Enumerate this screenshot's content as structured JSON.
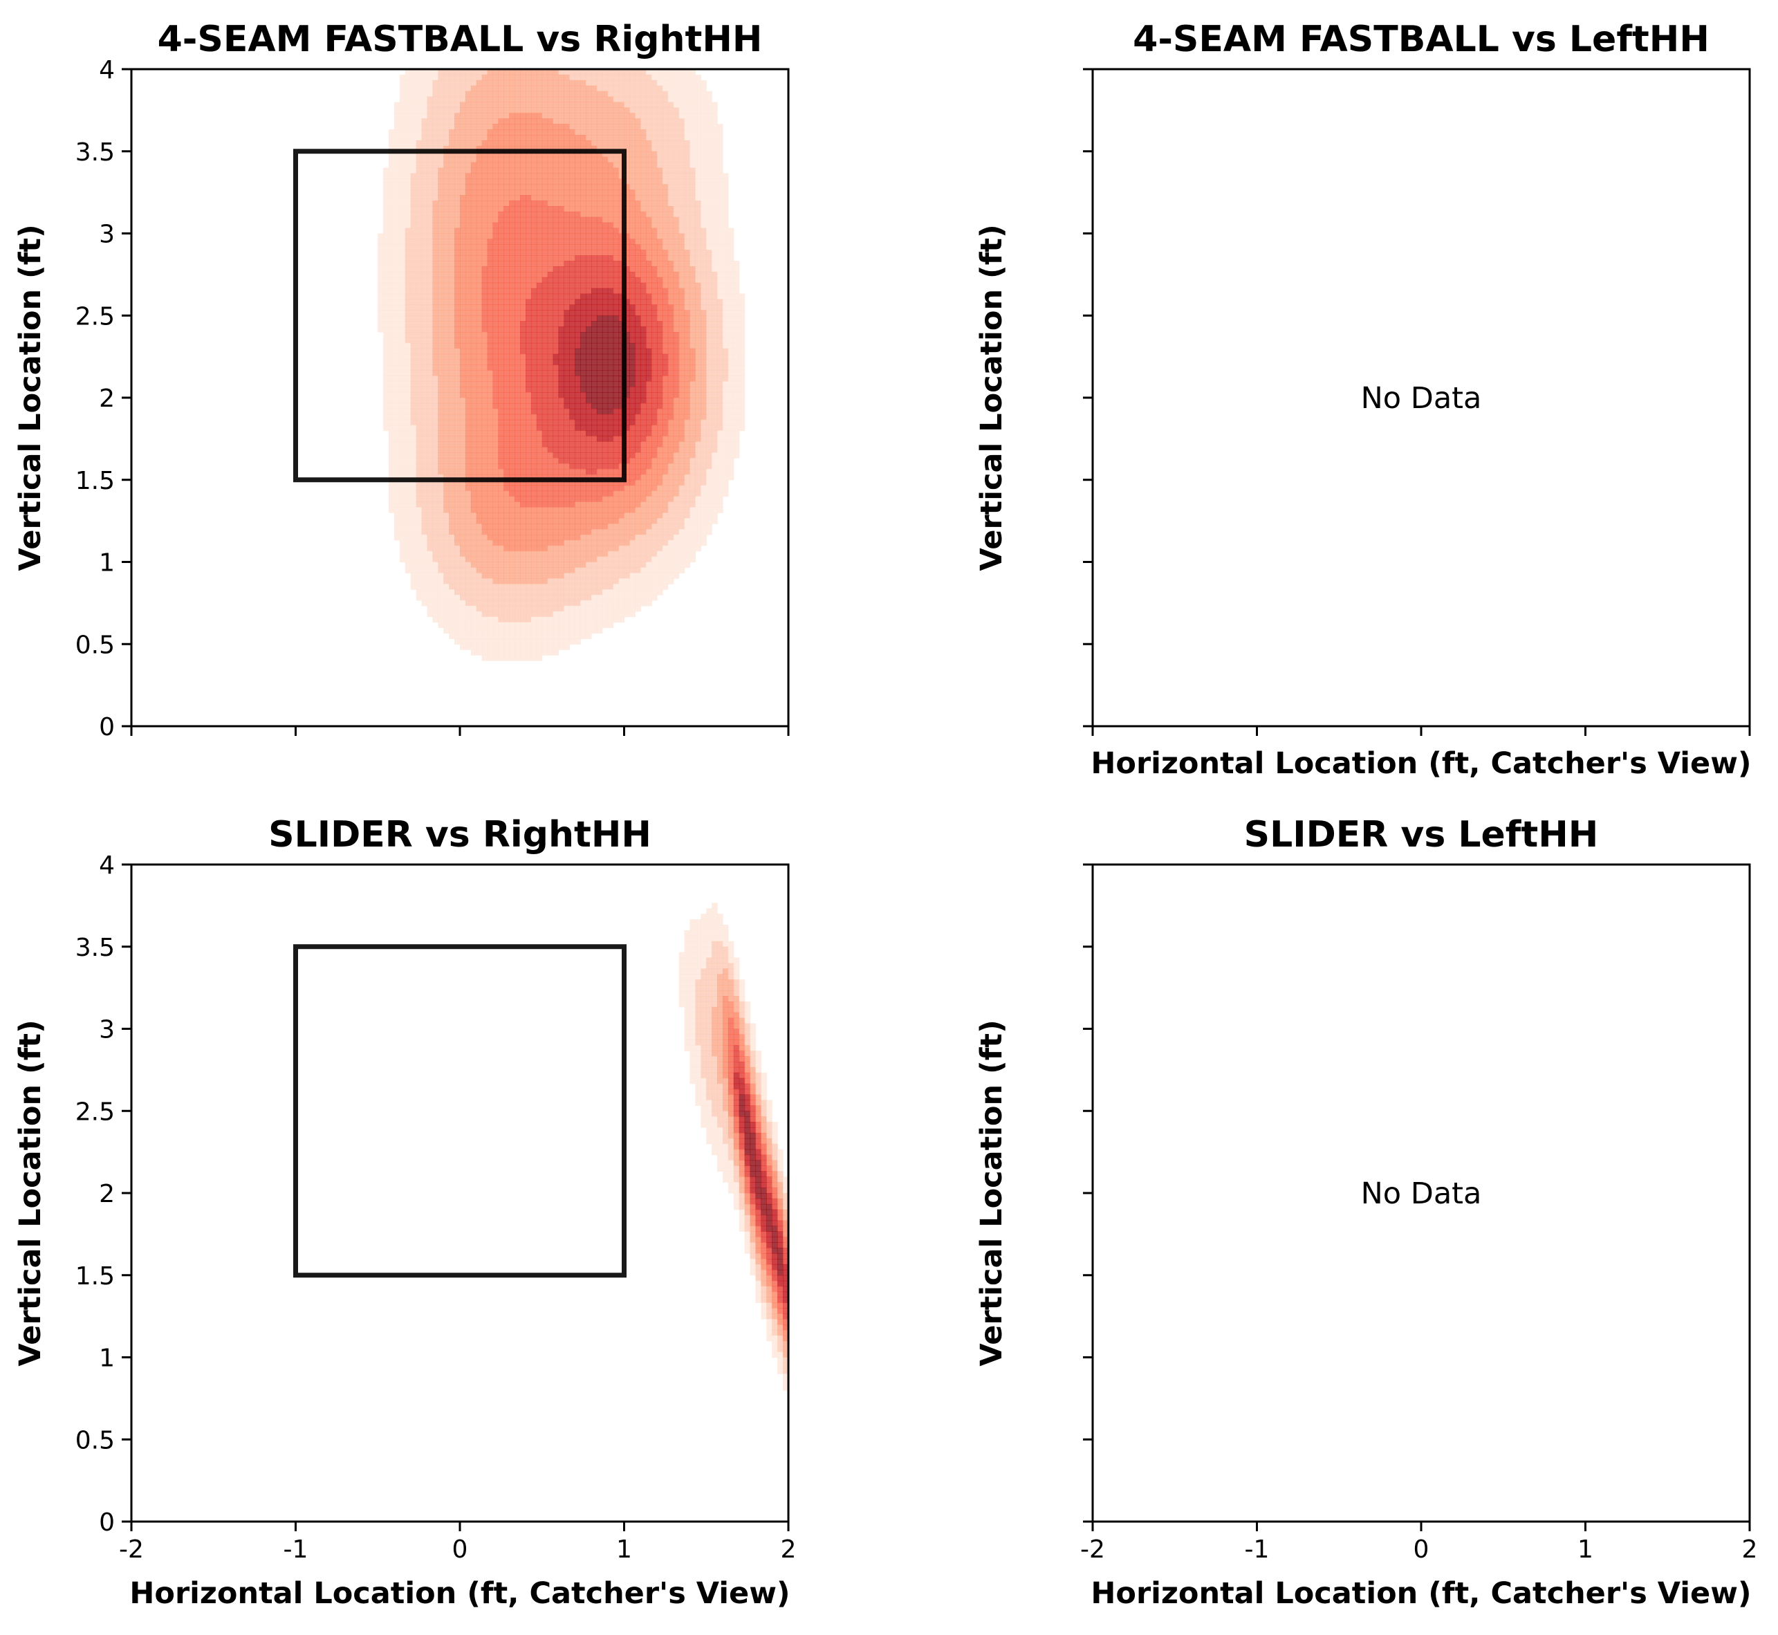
{
  "chart_data": [
    {
      "type": "heatmap",
      "subtype": "kde-density",
      "title": "4-SEAM FASTBALL vs RightHH",
      "xlabel": "",
      "ylabel": "Vertical Location (ft)",
      "xlim": [
        -2,
        2
      ],
      "ylim": [
        0,
        4
      ],
      "xticks": [
        -2,
        -1,
        0,
        1,
        2
      ],
      "yticks": [
        0,
        0.5,
        1,
        1.5,
        2,
        2.5,
        3,
        3.5,
        4
      ],
      "ytick_labels": [
        "0",
        "0.5",
        "1",
        "1.5",
        "2",
        "2.5",
        "3",
        "3.5",
        "4"
      ],
      "xtick_labels_shown": false,
      "ytick_labels_shown": true,
      "strike_zone": {
        "x": [
          -1,
          1
        ],
        "y": [
          1.5,
          3.5
        ]
      },
      "density_peaks": [
        {
          "x": 0.95,
          "y": 2.2,
          "sx": 0.33,
          "sy": 0.6,
          "w": 1.0
        },
        {
          "x": 0.25,
          "y": 2.7,
          "sx": 0.35,
          "sy": 1.0,
          "w": 0.5
        },
        {
          "x": 0.35,
          "y": 1.3,
          "sx": 0.35,
          "sy": 0.4,
          "w": 0.25
        },
        {
          "x": 0.9,
          "y": 3.6,
          "sx": 0.4,
          "sy": 0.4,
          "w": 0.2
        }
      ],
      "colormap": "Reds",
      "no_data": false
    },
    {
      "type": "heatmap",
      "subtype": "kde-density",
      "title": "4-SEAM FASTBALL vs LeftHH",
      "xlabel": "Horizontal Location (ft, Catcher's View)",
      "ylabel": "Vertical Location (ft)",
      "xlim": [
        -2,
        2
      ],
      "ylim": [
        0,
        4
      ],
      "xticks": [
        -2,
        -1,
        0,
        1,
        2
      ],
      "yticks": [
        0,
        0.5,
        1,
        1.5,
        2,
        2.5,
        3,
        3.5,
        4
      ],
      "xtick_labels_shown": false,
      "ytick_labels_shown": false,
      "no_data": true,
      "no_data_text": "No Data"
    },
    {
      "type": "heatmap",
      "subtype": "kde-density",
      "title": "SLIDER vs RightHH",
      "xlabel": "Horizontal Location (ft, Catcher's View)",
      "ylabel": "Vertical Location (ft)",
      "xlim": [
        -2,
        2
      ],
      "ylim": [
        0,
        4
      ],
      "xticks": [
        -2,
        -1,
        0,
        1,
        2
      ],
      "xtick_labels": [
        "-2",
        "-1",
        "0",
        "1",
        "2"
      ],
      "yticks": [
        0,
        0.5,
        1,
        1.5,
        2,
        2.5,
        3,
        3.5,
        4
      ],
      "ytick_labels": [
        "0",
        "0.5",
        "1",
        "1.5",
        "2",
        "2.5",
        "3",
        "3.5",
        "4"
      ],
      "xtick_labels_shown": true,
      "ytick_labels_shown": true,
      "strike_zone": {
        "x": [
          -1,
          1
        ],
        "y": [
          1.5,
          3.5
        ]
      },
      "density_peaks": [
        {
          "x": 1.75,
          "y": 2.35,
          "sx": 0.09,
          "sy": 0.55,
          "w": 0.85,
          "rho": -0.85
        },
        {
          "x": 1.95,
          "y": 1.6,
          "sx": 0.1,
          "sy": 0.5,
          "w": 1.0,
          "rho": -0.85
        },
        {
          "x": 1.6,
          "y": 2.8,
          "sx": 0.15,
          "sy": 0.5,
          "w": 0.25,
          "rho": -0.6
        }
      ],
      "colormap": "Reds",
      "no_data": false
    },
    {
      "type": "heatmap",
      "subtype": "kde-density",
      "title": "SLIDER vs LeftHH",
      "xlabel": "Horizontal Location (ft, Catcher's View)",
      "ylabel": "Vertical Location (ft)",
      "xlim": [
        -2,
        2
      ],
      "ylim": [
        0,
        4
      ],
      "xticks": [
        -2,
        -1,
        0,
        1,
        2
      ],
      "xtick_labels": [
        "-2",
        "-1",
        "0",
        "1",
        "2"
      ],
      "yticks": [
        0,
        0.5,
        1,
        1.5,
        2,
        2.5,
        3,
        3.5,
        4
      ],
      "xtick_labels_shown": true,
      "ytick_labels_shown": false,
      "no_data": true,
      "no_data_text": "No Data"
    }
  ]
}
